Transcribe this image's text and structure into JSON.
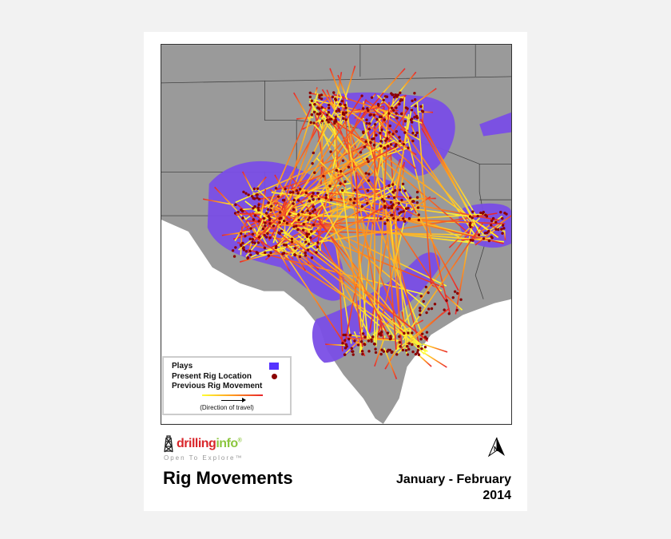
{
  "title": "Rig Movements",
  "date_range": {
    "line1": "January - February",
    "line2": "2014"
  },
  "logo": {
    "brand_part1": "drilling",
    "brand_part2": "info",
    "tagline": "Open To Explore™",
    "registered": "®"
  },
  "legend": {
    "plays_label": "Plays",
    "present_label": "Present Rig Location",
    "previous_label": "Previous Rig Movement",
    "direction_label": "(Direction of travel)"
  },
  "colors": {
    "plays": "#7a4ee6",
    "rig": "#8b0000",
    "movement_start": "#ffff33",
    "movement_end": "#e8232a",
    "land": "#9a9a9a",
    "water": "#ffffff",
    "brand_red": "#d9262b",
    "brand_green": "#8cc63f"
  },
  "icons": {
    "north_arrow": "north-arrow-icon",
    "logo": "derrick-icon"
  }
}
